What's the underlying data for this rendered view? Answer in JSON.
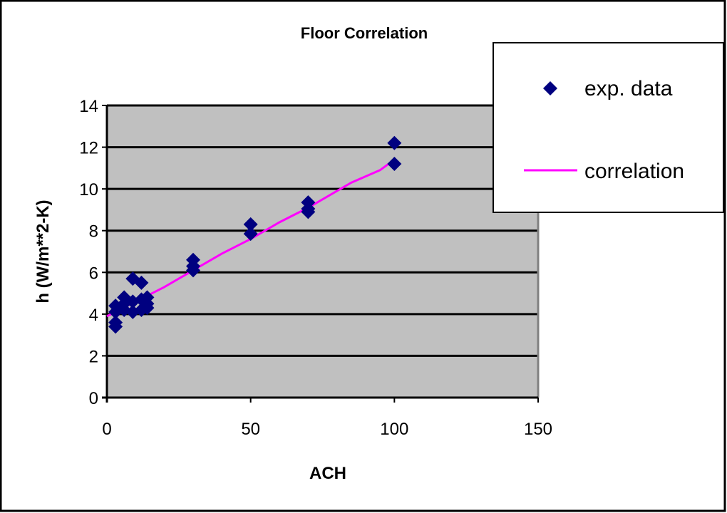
{
  "chart_data": {
    "type": "scatter",
    "title": "Floor Correlation",
    "xlabel": "ACH",
    "ylabel": "h (W/m**2-K)",
    "xlim": [
      0,
      150
    ],
    "ylim": [
      0,
      14
    ],
    "xticks": [
      0,
      50,
      100,
      150
    ],
    "yticks": [
      0,
      2,
      4,
      6,
      8,
      10,
      12,
      14
    ],
    "grid": "horizontal",
    "plot_background": "#c0c0c0",
    "legend_position": "top-right",
    "series": [
      {
        "name": "exp. data",
        "kind": "scatter",
        "marker": "diamond",
        "color": "#000080",
        "points": [
          [
            3,
            3.4
          ],
          [
            3,
            3.6
          ],
          [
            3,
            4.1
          ],
          [
            3,
            4.4
          ],
          [
            6,
            4.2
          ],
          [
            6,
            4.5
          ],
          [
            6,
            4.8
          ],
          [
            9,
            5.7
          ],
          [
            9,
            4.1
          ],
          [
            9,
            4.6
          ],
          [
            12,
            5.5
          ],
          [
            12,
            4.2
          ],
          [
            12,
            4.7
          ],
          [
            14,
            4.3
          ],
          [
            14,
            4.5
          ],
          [
            14,
            4.8
          ],
          [
            30,
            6.6
          ],
          [
            30,
            6.3
          ],
          [
            30,
            6.1
          ],
          [
            50,
            8.3
          ],
          [
            50,
            7.85
          ],
          [
            70,
            9.35
          ],
          [
            70,
            9.05
          ],
          [
            70,
            8.9
          ],
          [
            100,
            12.2
          ],
          [
            100,
            11.2
          ]
        ]
      },
      {
        "name": "correlation",
        "kind": "line",
        "color": "#ff00ff",
        "points": [
          [
            0,
            3.9
          ],
          [
            10,
            4.6
          ],
          [
            20,
            5.3
          ],
          [
            30,
            6.1
          ],
          [
            40,
            6.9
          ],
          [
            50,
            7.6
          ],
          [
            60,
            8.4
          ],
          [
            70,
            9.1
          ],
          [
            85,
            10.3
          ],
          [
            95,
            10.9
          ],
          [
            100,
            11.4
          ]
        ]
      }
    ]
  }
}
